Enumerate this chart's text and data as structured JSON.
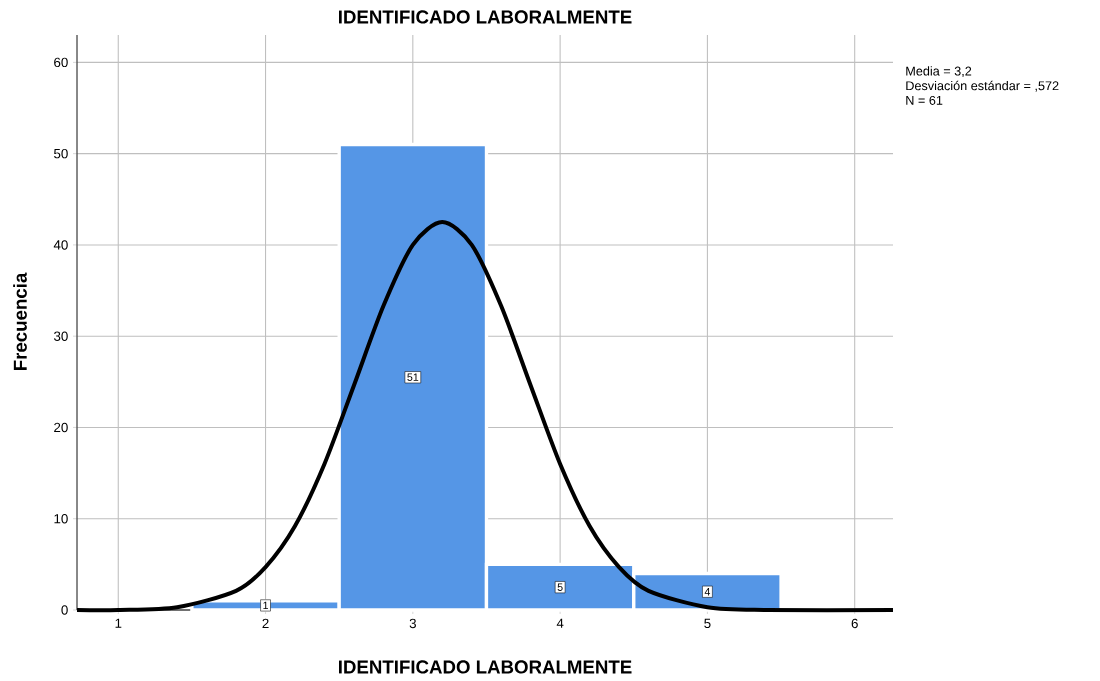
{
  "chart_data": {
    "type": "histogram",
    "title": "IDENTIFICADO LABORALMENTE",
    "xlabel": "IDENTIFICADO LABORALMENTE",
    "ylabel": "Frecuencia",
    "bins": [
      1.5,
      2.5,
      3.5,
      4.5,
      5.5
    ],
    "series": [
      {
        "color": "#5596e6",
        "values": [
          1,
          51,
          5,
          4
        ],
        "value_labels": [
          "1",
          "51",
          "5",
          "4"
        ]
      },
      {
        "type": "line",
        "color": "#000000",
        "x": [
          0.72,
          1.0,
          1.4,
          1.8,
          2.0,
          2.2,
          2.4,
          2.6,
          2.8,
          3.0,
          3.2,
          3.4,
          3.6,
          3.8,
          4.0,
          4.2,
          4.4,
          4.6,
          5.0,
          5.4,
          6.26
        ],
        "values": [
          0,
          0,
          0.3,
          2.1,
          4.7,
          9.2,
          16.0,
          24.6,
          33.3,
          40.0,
          42.5,
          40.0,
          33.3,
          24.6,
          16.0,
          9.2,
          4.7,
          2.1,
          0.3,
          0,
          0
        ]
      }
    ],
    "xlim": [
      0.72,
      6.26
    ],
    "ylim": [
      0,
      63
    ],
    "xticks": [
      1,
      2,
      3,
      4,
      5,
      6
    ],
    "yticks": [
      0,
      10,
      20,
      30,
      40,
      50,
      60
    ],
    "grid": true,
    "annotations": [
      "Media = 3,2",
      "Desviación estándar = ,572",
      "N = 61"
    ]
  }
}
